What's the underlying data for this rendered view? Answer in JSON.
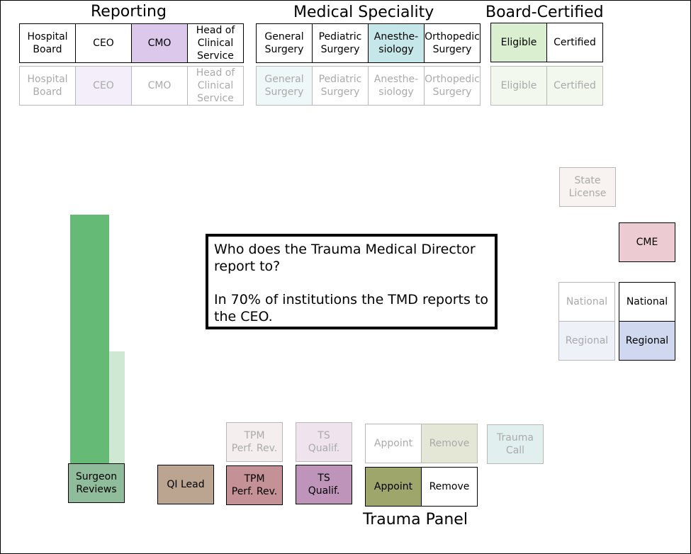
{
  "headings": {
    "reporting": "Reporting",
    "medical_speciality": "Medical Speciality",
    "board_certified": "Board-Certified",
    "trauma_panel": "Trauma Panel"
  },
  "reporting": {
    "active": [
      {
        "label": "Hospital\nBoard",
        "color": "#ffffff"
      },
      {
        "label": "CEO",
        "color": "#ffffff"
      },
      {
        "label": "CMO",
        "color": "#dcc8ea"
      },
      {
        "label": "Head of\nClinical\nService",
        "color": "#ffffff"
      }
    ],
    "faded": [
      {
        "label": "Hospital\nBoard",
        "color": "#ffffff"
      },
      {
        "label": "CEO",
        "color": "#f3eefa"
      },
      {
        "label": "CMO",
        "color": "#ffffff"
      },
      {
        "label": "Head of\nClinical\nService",
        "color": "#ffffff"
      }
    ]
  },
  "speciality": {
    "active": [
      {
        "label": "General\nSurgery",
        "color": "#ffffff"
      },
      {
        "label": "Pediatric\nSurgery",
        "color": "#ffffff"
      },
      {
        "label": "Anesthe-\nsiology",
        "color": "#c6e7ea"
      },
      {
        "label": "Orthopedic\nSurgery",
        "color": "#ffffff"
      }
    ],
    "faded": [
      {
        "label": "General\nSurgery",
        "color": "#eef8f8"
      },
      {
        "label": "Pediatric\nSurgery",
        "color": "#ffffff"
      },
      {
        "label": "Anesthe-\nsiology",
        "color": "#ffffff"
      },
      {
        "label": "Orthopedic\nSurgery",
        "color": "#ffffff"
      }
    ]
  },
  "board": {
    "active": [
      {
        "label": "Eligible",
        "color": "#d9efcf"
      },
      {
        "label": "Certified",
        "color": "#ffffff"
      }
    ],
    "faded": [
      {
        "label": "Eligible",
        "color": "#f2f8ee"
      },
      {
        "label": "Certified",
        "color": "#f2f8ee"
      }
    ]
  },
  "license": {
    "state": {
      "label": "State\nLicense",
      "color": "#f8f3f0"
    }
  },
  "cme": {
    "label": "CME",
    "color": "#ecccd2"
  },
  "scope": {
    "faded": [
      {
        "label": "National",
        "color": "#ffffff"
      },
      {
        "label": "Regional",
        "color": "#eef1f8"
      }
    ],
    "active": [
      {
        "label": "National",
        "color": "#ffffff"
      },
      {
        "label": "Regional",
        "color": "#cfd8ee"
      }
    ]
  },
  "callout": {
    "question": "Who does the Trauma Medical Director report to?",
    "answer": "In 70% of institutions the TMD reports to the CEO."
  },
  "bars": {
    "primary_color": "#65bb76",
    "secondary_color": "#cfe8d3"
  },
  "bottom": {
    "surgeon_reviews": {
      "label": "Surgeon\nReviews",
      "color": "#8fbc9b"
    },
    "qi_lead": {
      "label": "QI Lead",
      "color": "#bba490"
    },
    "tpm_active": {
      "label": "TPM\nPerf. Rev.",
      "color": "#c49196"
    },
    "tpm_faded": {
      "label": "TPM\nPerf. Rev.",
      "color": "#f5eeee"
    },
    "ts_active": {
      "label": "TS\nQualif.",
      "color": "#bf94bb"
    },
    "ts_faded": {
      "label": "TS\nQualif.",
      "color": "#efe3ee"
    },
    "appoint_active": {
      "label": "Appoint",
      "color": "#9fa66c"
    },
    "remove_active": {
      "label": "Remove",
      "color": "#ffffff"
    },
    "appoint_faded": {
      "label": "Appoint",
      "color": "#ffffff"
    },
    "remove_faded": {
      "label": "Remove",
      "color": "#e4e6d6"
    },
    "trauma_call": {
      "label": "Trauma\nCall",
      "color": "#e1efef"
    }
  }
}
